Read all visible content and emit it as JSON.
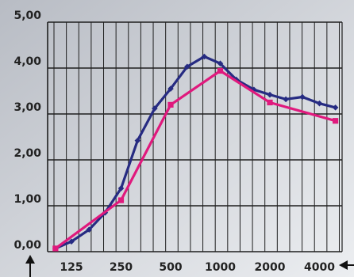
{
  "chart_data": {
    "type": "line",
    "x_ticks": [
      "125",
      "250",
      "500",
      "1000",
      "2000",
      "4000"
    ],
    "y_ticks": [
      "0,00",
      "1,00",
      "2,00",
      "3,00",
      "4,00",
      "5,00"
    ],
    "ylim": [
      0,
      5
    ],
    "x_scale": "log2 (frequency, 1/3-octave steps)",
    "grid": true,
    "series": [
      {
        "color": "#262b82",
        "marker": "diamond",
        "x": [
          100,
          125,
          160,
          200,
          250,
          315,
          400,
          500,
          630,
          800,
          1000,
          1250,
          1600,
          2000,
          2500,
          3150,
          4000,
          5000
        ],
        "y": [
          0.07,
          0.22,
          0.48,
          0.85,
          1.38,
          2.42,
          3.12,
          3.55,
          4.03,
          4.25,
          4.1,
          3.75,
          3.53,
          3.42,
          3.32,
          3.37,
          3.23,
          3.14
        ]
      },
      {
        "color": "#e0197d",
        "marker": "square",
        "x": [
          100,
          250,
          500,
          1000,
          2000,
          5000
        ],
        "y": [
          0.07,
          1.12,
          3.2,
          3.94,
          3.25,
          2.85
        ]
      }
    ]
  },
  "colors": {
    "background_gradient_from": "#b8bcc4",
    "background_gradient_to": "#eceef1",
    "grid": "#1f1f1f",
    "axis_arrow": "#111111"
  }
}
